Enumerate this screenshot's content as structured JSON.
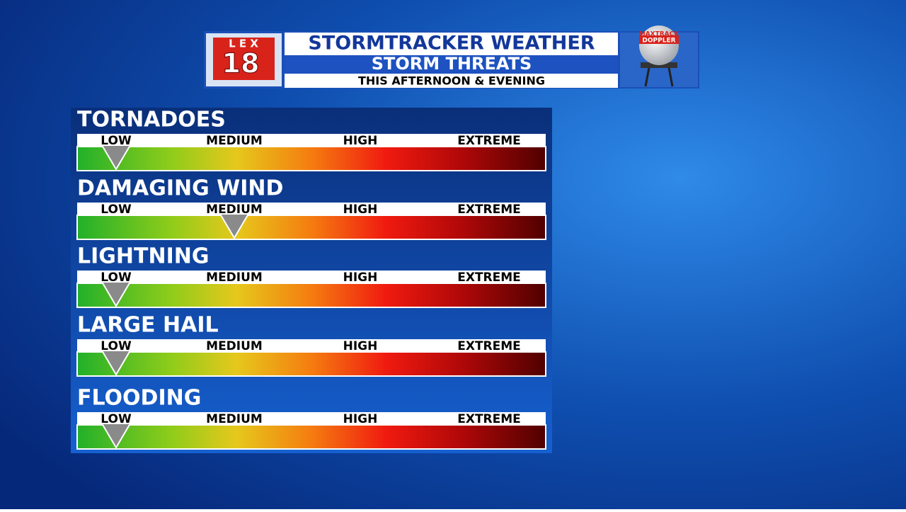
{
  "header": {
    "station_logo": {
      "letters": "L E X",
      "number": "18"
    },
    "title": "STORMTRACKER WEATHER",
    "subtitle": "STORM THREATS",
    "period": "THIS AFTERNOON & EVENING",
    "radar_logo": {
      "top": "MAXTRACK",
      "bottom": "DOPPLER"
    }
  },
  "threats": [
    {
      "name": "TORNADOES",
      "levels": [
        "LOW",
        "MEDIUM",
        "HIGH",
        "EXTREME"
      ],
      "level": 0
    },
    {
      "name": "DAMAGING WIND",
      "levels": [
        "LOW",
        "MEDIUM",
        "HIGH",
        "EXTREME"
      ],
      "level": 1
    },
    {
      "name": "LIGHTNING",
      "levels": [
        "LOW",
        "MEDIUM",
        "HIGH",
        "EXTREME"
      ],
      "level": 0
    },
    {
      "name": "LARGE HAIL",
      "levels": [
        "LOW",
        "MEDIUM",
        "HIGH",
        "EXTREME"
      ],
      "level": 0
    },
    {
      "name": "FLOODING",
      "levels": [
        "LOW",
        "MEDIUM",
        "HIGH",
        "EXTREME"
      ],
      "level": 0
    }
  ]
}
